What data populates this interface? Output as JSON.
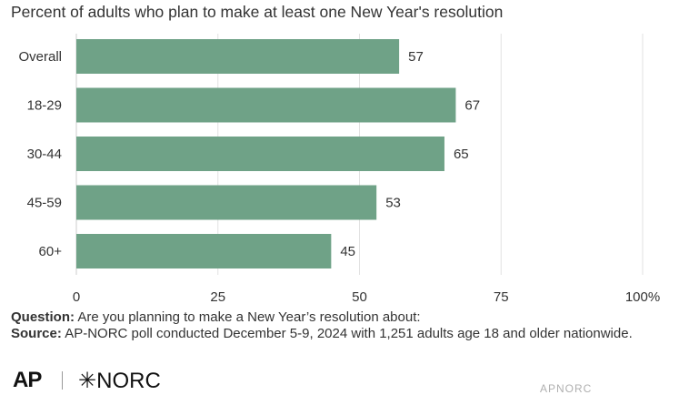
{
  "chart_data": {
    "type": "bar",
    "orientation": "horizontal",
    "title": "Percent of adults who plan to make at least one New Year's resolution",
    "categories": [
      "Overall",
      "18-29",
      "30-44",
      "45-59",
      "60+"
    ],
    "values": [
      57,
      67,
      65,
      53,
      45
    ],
    "data_labels": [
      "57",
      "67",
      "65",
      "53",
      "45"
    ],
    "xlim": [
      0,
      100
    ],
    "x_ticks": [
      0,
      25,
      50,
      75,
      100
    ],
    "x_tick_labels": [
      "0",
      "25",
      "50",
      "75",
      "100%"
    ],
    "grid": "vertical",
    "bar_color": "#6fa287"
  },
  "notes": {
    "question_label": "Question:",
    "question_text": "Are you planning to make a New Year’s resolution about:",
    "source_label": "Source:",
    "source_text": "AP-NORC poll conducted December 5-9, 2024 with 1,251 adults age 18 and older nationwide."
  },
  "logos": {
    "ap": "AP",
    "norc": "✳NORC"
  },
  "credit": "APNORC"
}
